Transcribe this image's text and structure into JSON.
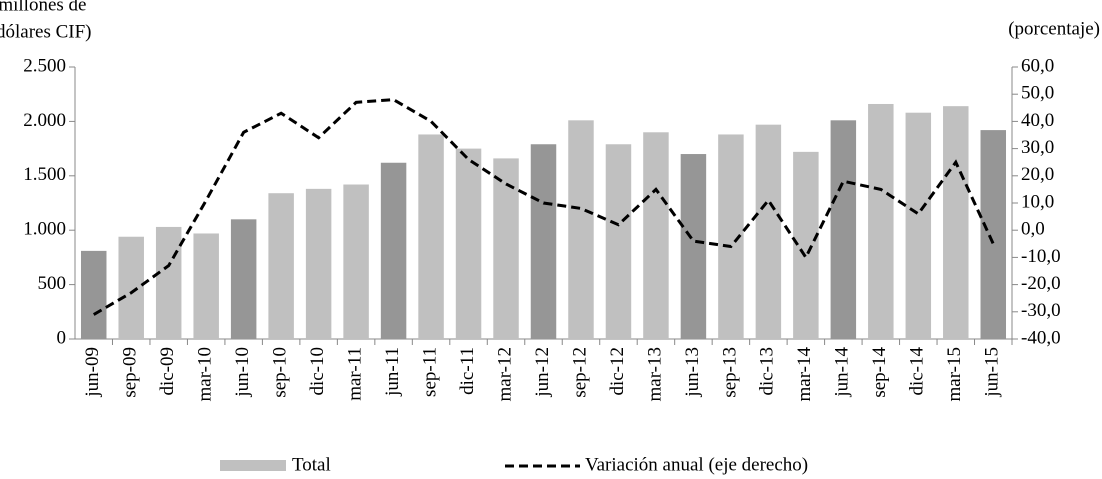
{
  "chart_data": {
    "type": "bar_line",
    "ylabel_lines": [
      "(millones de",
      "dólares CIF)"
    ],
    "y2label": "(porcentaje)",
    "categories": [
      "jun-09",
      "sep-09",
      "dic-09",
      "mar-10",
      "jun-10",
      "sep-10",
      "dic-10",
      "mar-11",
      "jun-11",
      "sep-11",
      "dic-11",
      "mar-12",
      "jun-12",
      "sep-12",
      "dic-12",
      "mar-13",
      "jun-13",
      "sep-13",
      "dic-13",
      "mar-14",
      "jun-14",
      "sep-14",
      "dic-14",
      "mar-15",
      "jun-15"
    ],
    "series": [
      {
        "name": "Total",
        "type": "bar",
        "color": "#c0c0c0",
        "colors": [
          "#969696",
          "#c0c0c0",
          "#c0c0c0",
          "#c0c0c0",
          "#969696",
          "#c0c0c0",
          "#c0c0c0",
          "#c0c0c0",
          "#969696",
          "#c0c0c0",
          "#c0c0c0",
          "#c0c0c0",
          "#969696",
          "#c0c0c0",
          "#c0c0c0",
          "#c0c0c0",
          "#969696",
          "#c0c0c0",
          "#c0c0c0",
          "#c0c0c0",
          "#969696",
          "#c0c0c0",
          "#c0c0c0",
          "#c0c0c0",
          "#969696"
        ],
        "values": [
          810,
          940,
          1030,
          970,
          1100,
          1340,
          1380,
          1420,
          1620,
          1880,
          1750,
          1660,
          1790,
          2010,
          1790,
          1900,
          1700,
          1880,
          1970,
          1720,
          2010,
          2160,
          2080,
          2140,
          1920
        ]
      },
      {
        "name": "Variación anual (eje derecho)",
        "type": "line",
        "axis": "y2",
        "color": "#000000",
        "dashed": true,
        "values": [
          -31,
          -23,
          -13,
          11,
          36,
          43,
          34,
          47,
          48,
          40,
          26,
          17,
          10,
          8,
          2,
          15,
          -4,
          -6,
          11,
          -10,
          18,
          15,
          6,
          25,
          -5
        ]
      }
    ],
    "ylim": [
      0,
      2500
    ],
    "yticks": [
      0,
      500,
      {
        "value": 1000,
        "label": "1.000"
      },
      {
        "value": 1500,
        "label": "1.500"
      },
      {
        "value": 2000,
        "label": "2.000"
      },
      {
        "value": 2500,
        "label": "2.500"
      }
    ],
    "y2lim": [
      -40,
      60
    ],
    "y2ticks": [
      {
        "value": -40,
        "label": "-40,0"
      },
      {
        "value": -30,
        "label": "-30,0"
      },
      {
        "value": -20,
        "label": "-20,0"
      },
      {
        "value": -10,
        "label": "-10,0"
      },
      {
        "value": 0,
        "label": "0,0"
      },
      {
        "value": 10,
        "label": "10,0"
      },
      {
        "value": 20,
        "label": "20,0"
      },
      {
        "value": 30,
        "label": "30,0"
      },
      {
        "value": 40,
        "label": "40,0"
      },
      {
        "value": 50,
        "label": "50,0"
      },
      {
        "value": 60,
        "label": "60,0"
      }
    ],
    "grid": false,
    "legend": "bottom"
  }
}
